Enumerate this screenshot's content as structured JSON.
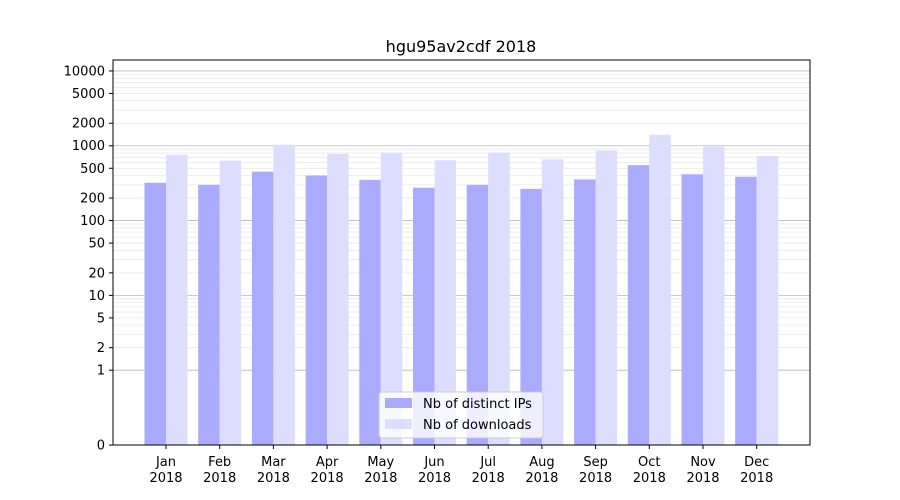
{
  "chart_data": {
    "type": "bar",
    "title": "hgu95av2cdf 2018",
    "xlabel": "",
    "ylabel": "",
    "y_scale": "symlog",
    "ylim": [
      0,
      14000
    ],
    "grid": true,
    "legend_position": "bottom-center",
    "categories": [
      "Jan\n2018",
      "Feb\n2018",
      "Mar\n2018",
      "Apr\n2018",
      "May\n2018",
      "Jun\n2018",
      "Jul\n2018",
      "Aug\n2018",
      "Sep\n2018",
      "Oct\n2018",
      "Nov\n2018",
      "Dec\n2018"
    ],
    "y_tick_labels": [
      "0",
      "1",
      "2",
      "5",
      "10",
      "20",
      "50",
      "100",
      "200",
      "500",
      "1000",
      "2000",
      "5000",
      "10000"
    ],
    "y_tick_values": [
      0,
      1,
      2,
      5,
      10,
      20,
      50,
      100,
      200,
      500,
      1000,
      2000,
      5000,
      10000
    ],
    "series": [
      {
        "name": "Nb of distinct IPs",
        "color": "#aaaaff",
        "values": [
          320,
          300,
          450,
          400,
          350,
          275,
          300,
          265,
          355,
          550,
          415,
          385
        ]
      },
      {
        "name": "Nb of downloads",
        "color": "#ddddff",
        "values": [
          760,
          630,
          1030,
          780,
          810,
          640,
          810,
          660,
          860,
          1400,
          970,
          730
        ]
      }
    ]
  }
}
